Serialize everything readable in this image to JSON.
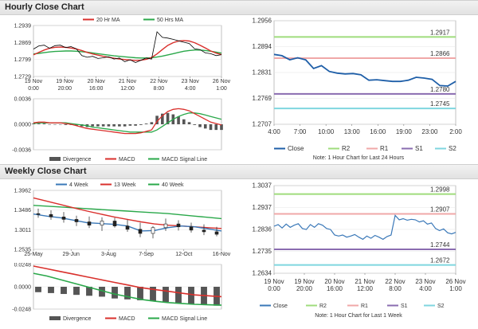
{
  "sections": {
    "hourly_title": "Hourly Close Chart",
    "weekly_title": "Weekly Close Chart"
  },
  "colors": {
    "close": "#3a78b8",
    "ma_red": "#d9302c",
    "ma_green": "#2aa84a",
    "r2": "#9fdc7c",
    "r1": "#f0a8a8",
    "s1": "#8a6cb0",
    "s2": "#7fd6df",
    "candle": "#222222",
    "divergence": "#555555"
  },
  "chart_data": [
    {
      "id": "hourly_price",
      "type": "line",
      "legend": [
        "20 Hr MA",
        "50 Hrs MA"
      ],
      "x_tick_labels": [
        [
          "19 Nov",
          "0:00"
        ],
        [
          "19 Nov",
          "20:00"
        ],
        [
          "20 Nov",
          "16:00"
        ],
        [
          "21 Nov",
          "12:00"
        ],
        [
          "22 Nov",
          "8:00"
        ],
        [
          "23 Nov",
          "4:00"
        ],
        [
          "26 Nov",
          "1:00"
        ]
      ],
      "y_tick_labels": [
        "1.2939",
        "1.2869",
        "1.2799",
        "1.2729"
      ],
      "ylim": [
        1.2729,
        1.2939
      ],
      "series": [
        {
          "name": "Close",
          "color": "#000000",
          "values": [
            1.2842,
            1.2855,
            1.2858,
            1.2845,
            1.2856,
            1.2858,
            1.2848,
            1.2852,
            1.2843,
            1.2815,
            1.2808,
            1.2812,
            1.2803,
            1.2806,
            1.281,
            1.2801,
            1.2805,
            1.279,
            1.2798,
            1.2786,
            1.2796,
            1.2805,
            1.2801,
            1.2913,
            1.289,
            1.2887,
            1.2882,
            1.2876,
            1.287,
            1.2865,
            1.2843,
            1.284,
            1.2826,
            1.2823,
            1.2815,
            1.2819
          ]
        },
        {
          "name": "20 Hr MA",
          "color": "#d9302c",
          "values": [
            1.2818,
            1.2828,
            1.2838,
            1.2845,
            1.2849,
            1.285,
            1.2849,
            1.2846,
            1.2842,
            1.2836,
            1.2828,
            1.2822,
            1.2817,
            1.2812,
            1.2808,
            1.2804,
            1.2801,
            1.2799,
            1.2797,
            1.2795,
            1.2796,
            1.28,
            1.2807,
            1.2822,
            1.284,
            1.2857,
            1.2868,
            1.2875,
            1.2877,
            1.2875,
            1.2868,
            1.2858,
            1.2846,
            1.2834,
            1.2825,
            1.2819
          ]
        },
        {
          "name": "50 Hrs MA",
          "color": "#2aa84a",
          "values": [
            1.2822,
            1.2824,
            1.2827,
            1.283,
            1.2832,
            1.2833,
            1.2834,
            1.2834,
            1.2833,
            1.2831,
            1.2829,
            1.2826,
            1.2823,
            1.282,
            1.2817,
            1.2814,
            1.2812,
            1.281,
            1.2808,
            1.2806,
            1.2805,
            1.2805,
            1.2806,
            1.2809,
            1.2813,
            1.2818,
            1.2823,
            1.2828,
            1.2833,
            1.2836,
            1.2838,
            1.2838,
            1.2836,
            1.2833,
            1.2829,
            1.2825
          ]
        }
      ]
    },
    {
      "id": "hourly_macd",
      "type": "line",
      "legend": [
        "Divergence",
        "MACD",
        "MACD Signal Line"
      ],
      "y_tick_labels": [
        "0.0036",
        "0.0000",
        "-0.0036"
      ],
      "ylim": [
        -0.0036,
        0.0036
      ],
      "series": [
        {
          "name": "MACD",
          "color": "#d9302c",
          "values": [
            0.0002,
            0.0003,
            0.0003,
            0.0002,
            0.0002,
            0.0002,
            0.0001,
            0.0,
            -0.0002,
            -0.0004,
            -0.0006,
            -0.0007,
            -0.0008,
            -0.0009,
            -0.001,
            -0.0011,
            -0.0012,
            -0.0013,
            -0.0013,
            -0.0013,
            -0.0012,
            -0.001,
            -0.0008,
            0.0004,
            0.0012,
            0.0018,
            0.0021,
            0.0022,
            0.0021,
            0.0019,
            0.0015,
            0.0011,
            0.0007,
            0.0003,
            0.0001,
            -0.0001
          ]
        },
        {
          "name": "MACD Signal Line",
          "color": "#2aa84a",
          "values": [
            0.0001,
            0.0002,
            0.0002,
            0.0002,
            0.0002,
            0.0002,
            0.0002,
            0.0001,
            0.0,
            -0.0001,
            -0.0002,
            -0.0004,
            -0.0005,
            -0.0006,
            -0.0007,
            -0.0008,
            -0.0009,
            -0.001,
            -0.0011,
            -0.0011,
            -0.0011,
            -0.0011,
            -0.0011,
            -0.0008,
            -0.0003,
            0.0002,
            0.0007,
            0.0011,
            0.0014,
            0.0016,
            0.0016,
            0.0015,
            0.0013,
            0.0011,
            0.0009,
            0.0007
          ]
        },
        {
          "name": "Divergence",
          "color": "#555555",
          "values": [
            0.0001,
            0.0001,
            0.0001,
            0.0,
            0.0,
            0.0,
            -0.0001,
            -0.0001,
            -0.0002,
            -0.0003,
            -0.0004,
            -0.0003,
            -0.0003,
            -0.0003,
            -0.0003,
            -0.0003,
            -0.0003,
            -0.0003,
            -0.0002,
            -0.0002,
            -0.0001,
            0.0001,
            0.0003,
            0.0012,
            0.0015,
            0.0016,
            0.0014,
            0.0011,
            0.0007,
            0.0003,
            -0.0001,
            -0.0004,
            -0.0006,
            -0.0008,
            -0.0008,
            -0.0008
          ]
        }
      ]
    },
    {
      "id": "hourly_close_levels",
      "type": "line",
      "x_tick_labels": [
        "4:00",
        "7:00",
        "10:00",
        "13:00",
        "16:00",
        "19:00",
        "23:00",
        "2:00"
      ],
      "y_tick_labels": [
        "1.2956",
        "1.2894",
        "1.2831",
        "1.2769",
        "1.2707"
      ],
      "ylim": [
        1.2707,
        1.2956
      ],
      "legend": [
        "Close",
        "R2",
        "R1",
        "S1",
        "S2"
      ],
      "note": "Note: 1 Hour Chart for Last 24 Hours",
      "levels": [
        {
          "name": "R2",
          "value": 1.2917,
          "label": "1.2917",
          "color": "#9fdc7c"
        },
        {
          "name": "R1",
          "value": 1.2866,
          "label": "1.2866",
          "color": "#f0a8a8"
        },
        {
          "name": "S1",
          "value": 1.278,
          "label": "1.2780",
          "color": "#8a6cb0"
        },
        {
          "name": "S2",
          "value": 1.2745,
          "label": "1.2745",
          "color": "#7fd6df"
        }
      ],
      "series": [
        {
          "name": "Close",
          "color": "#1f5fa8",
          "values": [
            1.2875,
            1.2872,
            1.2862,
            1.2867,
            1.2862,
            1.2841,
            1.2848,
            1.2834,
            1.283,
            1.2828,
            1.2829,
            1.2826,
            1.2813,
            1.2814,
            1.2812,
            1.281,
            1.281,
            1.2813,
            1.282,
            1.2818,
            1.2815,
            1.28,
            1.2799,
            1.281
          ]
        }
      ]
    },
    {
      "id": "weekly_price",
      "type": "candlestick",
      "legend": [
        "4 Week",
        "13 Week",
        "40 Week"
      ],
      "x_tick_labels": [
        "25-May",
        "29-Jun",
        "3-Aug",
        "7-Sep",
        "12-Oct",
        "16-Nov"
      ],
      "y_tick_labels": [
        "1.3962",
        "1.3486",
        "1.3011",
        "1.2535"
      ],
      "ylim": [
        1.2535,
        1.3962
      ],
      "candles": [
        {
          "o": 1.34,
          "h": 1.352,
          "l": 1.33,
          "c": 1.338
        },
        {
          "o": 1.338,
          "h": 1.348,
          "l": 1.325,
          "c": 1.332
        },
        {
          "o": 1.332,
          "h": 1.344,
          "l": 1.318,
          "c": 1.326
        },
        {
          "o": 1.326,
          "h": 1.335,
          "l": 1.31,
          "c": 1.32
        },
        {
          "o": 1.32,
          "h": 1.333,
          "l": 1.305,
          "c": 1.312
        },
        {
          "o": 1.312,
          "h": 1.331,
          "l": 1.298,
          "c": 1.322
        },
        {
          "o": 1.322,
          "h": 1.33,
          "l": 1.306,
          "c": 1.31
        },
        {
          "o": 1.31,
          "h": 1.325,
          "l": 1.296,
          "c": 1.302
        },
        {
          "o": 1.302,
          "h": 1.318,
          "l": 1.283,
          "c": 1.292
        },
        {
          "o": 1.292,
          "h": 1.31,
          "l": 1.28,
          "c": 1.306
        },
        {
          "o": 1.306,
          "h": 1.328,
          "l": 1.298,
          "c": 1.315
        },
        {
          "o": 1.315,
          "h": 1.324,
          "l": 1.299,
          "c": 1.308
        },
        {
          "o": 1.308,
          "h": 1.318,
          "l": 1.294,
          "c": 1.3
        },
        {
          "o": 1.3,
          "h": 1.314,
          "l": 1.288,
          "c": 1.296
        },
        {
          "o": 1.296,
          "h": 1.308,
          "l": 1.285,
          "c": 1.29
        }
      ],
      "series": [
        {
          "name": "4 Week",
          "color": "#3a78b8",
          "values": [
            1.339,
            1.334,
            1.33,
            1.324,
            1.318,
            1.316,
            1.314,
            1.31,
            1.298,
            1.299,
            1.306,
            1.31,
            1.308,
            1.303,
            1.298
          ]
        },
        {
          "name": "13 Week",
          "color": "#d9302c",
          "values": [
            1.378,
            1.37,
            1.362,
            1.354,
            1.346,
            1.339,
            1.332,
            1.326,
            1.32,
            1.315,
            1.312,
            1.31,
            1.308,
            1.306,
            1.304
          ]
        },
        {
          "name": "40 Week",
          "color": "#2aa84a",
          "values": [
            1.36,
            1.358,
            1.356,
            1.354,
            1.352,
            1.35,
            1.348,
            1.346,
            1.344,
            1.342,
            1.34,
            1.337,
            1.334,
            1.331,
            1.328
          ]
        }
      ]
    },
    {
      "id": "weekly_macd",
      "type": "bar",
      "legend": [
        "Divergence",
        "MACD",
        "MACD Signal Line"
      ],
      "y_tick_labels": [
        "0.0248",
        "0.0000",
        "-0.0248"
      ],
      "ylim": [
        -0.0248,
        0.0248
      ],
      "series": [
        {
          "name": "MACD",
          "color": "#d9302c",
          "values": [
            0.023,
            0.02,
            0.017,
            0.014,
            0.011,
            0.008,
            0.005,
            0.002,
            -0.001,
            -0.003,
            -0.005,
            -0.007,
            -0.009,
            -0.01,
            -0.011
          ]
        },
        {
          "name": "MACD Signal Line",
          "color": "#2aa84a",
          "values": [
            0.015,
            0.012,
            0.008,
            0.004,
            0.0,
            -0.004,
            -0.008,
            -0.011,
            -0.014,
            -0.016,
            -0.0175,
            -0.0185,
            -0.0195,
            -0.02,
            -0.0205
          ]
        },
        {
          "name": "Divergence",
          "color": "#555555",
          "values": [
            -0.006,
            -0.007,
            -0.008,
            -0.009,
            -0.01,
            -0.011,
            -0.013,
            -0.014,
            -0.015,
            -0.016,
            -0.017,
            -0.018,
            -0.019,
            -0.02,
            -0.021
          ]
        }
      ]
    },
    {
      "id": "hourly_last_week",
      "type": "line",
      "x_tick_labels": [
        [
          "19 Nov",
          "0:00"
        ],
        [
          "19 Nov",
          "20:00"
        ],
        [
          "20 Nov",
          "16:00"
        ],
        [
          "21 Nov",
          "12:00"
        ],
        [
          "22 Nov",
          "8:00"
        ],
        [
          "23 Nov",
          "4:00"
        ],
        [
          "26 Nov",
          "1:00"
        ]
      ],
      "y_tick_labels": [
        "1.3037",
        "1.2937",
        "1.2836",
        "1.2735",
        "1.2634"
      ],
      "ylim": [
        1.2634,
        1.3037
      ],
      "legend": [
        "Close",
        "R2",
        "R1",
        "S1",
        "S2"
      ],
      "note": "Note: 1 Hour Chart for Last 1 Week",
      "levels": [
        {
          "name": "R2",
          "value": 1.2998,
          "label": "1.2998",
          "color": "#9fdc7c"
        },
        {
          "name": "R1",
          "value": 1.2907,
          "label": "1.2907",
          "color": "#f0a8a8"
        },
        {
          "name": "S1",
          "value": 1.2744,
          "label": "1.2744",
          "color": "#8a6cb0"
        },
        {
          "name": "S2",
          "value": 1.2672,
          "label": "1.2672",
          "color": "#7fd6df"
        }
      ],
      "series": [
        {
          "name": "Close",
          "color": "#3a78b8",
          "values": [
            1.285,
            1.2858,
            1.2842,
            1.286,
            1.2845,
            1.2855,
            1.2862,
            1.284,
            1.2835,
            1.2858,
            1.2845,
            1.2862,
            1.2855,
            1.284,
            1.2835,
            1.281,
            1.2805,
            1.281,
            1.28,
            1.2805,
            1.2812,
            1.28,
            1.279,
            1.2805,
            1.2795,
            1.2808,
            1.28,
            1.279,
            1.2803,
            1.281,
            1.29,
            1.288,
            1.2885,
            1.2878,
            1.2882,
            1.288,
            1.287,
            1.2875,
            1.286,
            1.2865,
            1.284,
            1.283,
            1.2838,
            1.282,
            1.2815,
            1.2822
          ]
        }
      ]
    }
  ]
}
